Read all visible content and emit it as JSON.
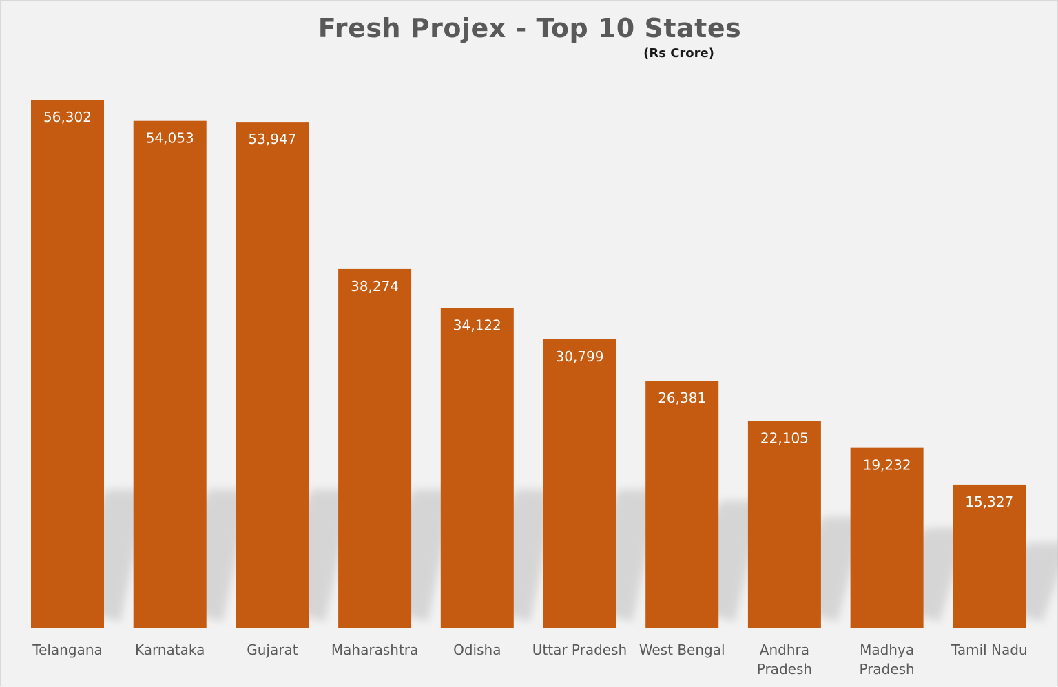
{
  "colors": {
    "bar": "#c55a11",
    "background": "#f2f2f2",
    "shadow": "#bfbfbf"
  },
  "chart_data": {
    "type": "bar",
    "title": "Fresh Projex - Top 10 States",
    "subtitle": "(Rs Crore)",
    "categories": [
      [
        "Telangana"
      ],
      [
        "Karnataka"
      ],
      [
        "Gujarat"
      ],
      [
        "Maharashtra"
      ],
      [
        "Odisha"
      ],
      [
        "Uttar Pradesh"
      ],
      [
        "West Bengal"
      ],
      [
        "Andhra",
        "Pradesh"
      ],
      [
        "Madhya",
        "Pradesh"
      ],
      [
        "Tamil Nadu"
      ]
    ],
    "values": [
      56302,
      54053,
      53947,
      38274,
      34122,
      30799,
      26381,
      22105,
      19232,
      15327
    ],
    "data_labels": [
      "56,302",
      "54,053",
      "53,947",
      "38,274",
      "34,122",
      "30,799",
      "26,381",
      "22,105",
      "19,232",
      "15,327"
    ],
    "ylim": [
      0,
      56302
    ],
    "grid": false,
    "legend": "none"
  }
}
